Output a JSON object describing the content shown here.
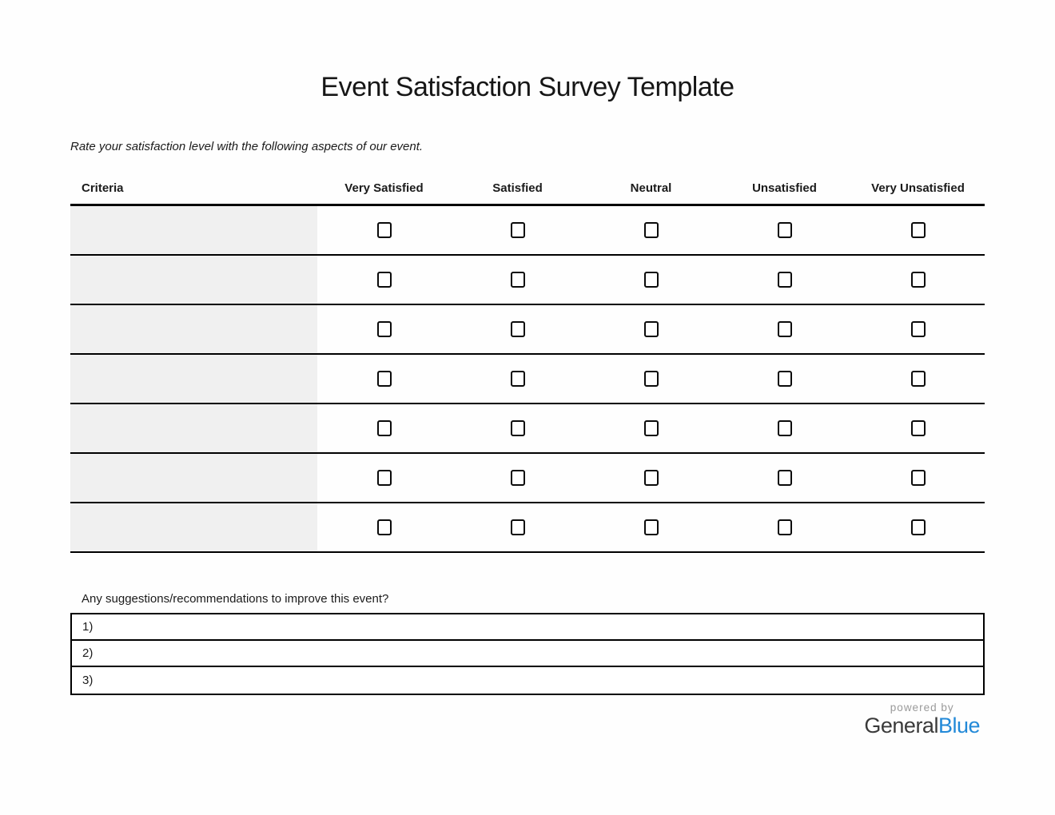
{
  "page": {
    "title": "Event Satisfaction Survey Template",
    "instruction": "Rate your satisfaction level with the following aspects of our event."
  },
  "survey_table": {
    "criteria_header": "Criteria",
    "rating_headers": [
      "Very Satisfied",
      "Satisfied",
      "Neutral",
      "Unsatisfied",
      "Very Unsatisfied"
    ],
    "row_count": 7,
    "rows": [
      {
        "criteria": ""
      },
      {
        "criteria": ""
      },
      {
        "criteria": ""
      },
      {
        "criteria": ""
      },
      {
        "criteria": ""
      },
      {
        "criteria": ""
      },
      {
        "criteria": ""
      }
    ],
    "all_checkboxes_checked": false
  },
  "suggestions": {
    "label": "Any suggestions/recommendations to improve this event?",
    "lines": [
      {
        "number": "1)",
        "value": ""
      },
      {
        "number": "2)",
        "value": ""
      },
      {
        "number": "3)",
        "value": ""
      }
    ]
  },
  "footer": {
    "powered_by": "powered by",
    "brand_part1": "General",
    "brand_part2": "Blue"
  },
  "colors": {
    "criteria_cell_bg": "#f0f0f0",
    "table_line": "#000000",
    "brand_dark": "#3a3a3a",
    "brand_blue": "#2289d8",
    "powered_by_gray": "#9a9a9a"
  }
}
